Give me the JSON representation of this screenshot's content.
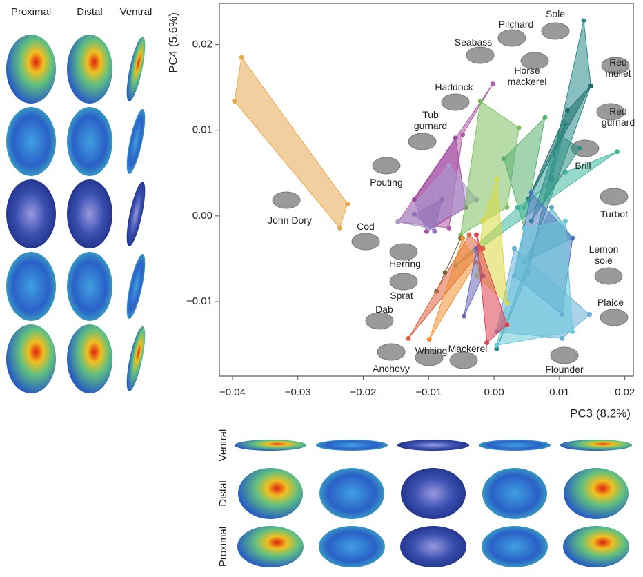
{
  "left_panel": {
    "headers": [
      "Proximal",
      "Distal",
      "Ventral"
    ]
  },
  "bottom_panel": {
    "row_labels": [
      "Ventral",
      "Distal",
      "Proximal"
    ]
  },
  "chart_data": {
    "type": "scatter",
    "xlabel": "PC3 (8.2%)",
    "ylabel": "PC4 (5.6%)",
    "xlim": [
      -0.042,
      0.0213
    ],
    "ylim": [
      -0.0187,
      0.0248
    ],
    "xticks": [
      {
        "value": -0.04,
        "label": "−0.04"
      },
      {
        "value": -0.03,
        "label": "−0.03"
      },
      {
        "value": -0.02,
        "label": "−0.02"
      },
      {
        "value": -0.01,
        "label": "−0.01"
      },
      {
        "value": 0,
        "label": "0.00"
      },
      {
        "value": 0.01,
        "label": "0.01"
      },
      {
        "value": 0.02,
        "label": "0.02"
      }
    ],
    "yticks": [
      {
        "value": -0.01,
        "label": "−0.01"
      },
      {
        "value": 0,
        "label": "0.00"
      },
      {
        "value": 0.01,
        "label": "0.01"
      },
      {
        "value": 0.02,
        "label": "0.02"
      }
    ],
    "series": [
      {
        "name": "John Dory",
        "color": "#e8a850",
        "x": [
          -0.0386,
          -0.0397,
          -0.0236,
          -0.0224
        ],
        "y": [
          0.0185,
          0.0134,
          -0.0014,
          0.0014
        ]
      },
      {
        "name": "Haddock",
        "color": "#b05aa8",
        "x": [
          -0.0002,
          -0.0147,
          -0.0069,
          -0.0048
        ],
        "y": [
          0.0154,
          -0.0007,
          -0.0014,
          0.0095
        ]
      },
      {
        "name": "Tub gurnard",
        "color": "#9a4aa0",
        "x": [
          -0.0122,
          -0.0103,
          -0.0043,
          -0.0059
        ],
        "y": [
          0.0019,
          -0.0018,
          0.001,
          0.0091
        ]
      },
      {
        "name": "Pouting",
        "color": "#a99ad0",
        "x": [
          -0.0147,
          -0.0069,
          -0.0027,
          -0.0101
        ],
        "y": [
          -0.0007,
          0.0059,
          0.0019,
          -0.0014
        ]
      },
      {
        "name": "Cod",
        "color": "#9070b8",
        "x": [
          -0.0122,
          -0.008,
          -0.0091
        ],
        "y": [
          0.0002,
          0.0019,
          -0.0018
        ]
      },
      {
        "name": "Seabass",
        "color": "#7cc060",
        "x": [
          -0.0051,
          -0.0021,
          0.0038,
          0.002
        ],
        "y": [
          -0.0022,
          0.0134,
          0.0103,
          0.001
        ]
      },
      {
        "name": "Pilchard",
        "color": "#3aa0a0",
        "x": [
          0.0046,
          0.0109,
          0.0088
        ],
        "y": [
          0.001,
          0.0107,
          0.0043
        ]
      },
      {
        "name": "Sole",
        "color": "#2a8a8a",
        "x": [
          0.0137,
          0.0148,
          0.0004,
          0.0052
        ],
        "y": [
          0.0228,
          0.0152,
          -0.0155,
          -0.0066
        ]
      },
      {
        "name": "Horse mackerel",
        "color": "#58b070",
        "x": [
          0.0015,
          0.0078,
          0.0046
        ],
        "y": [
          0.0067,
          0.0115,
          -0.0014
        ]
      },
      {
        "name": "Red mullet",
        "color": "#1e6f6a",
        "x": [
          0.0148,
          0.0112,
          0.0052
        ],
        "y": [
          0.0152,
          0.0123,
          0.0019
        ]
      },
      {
        "name": "Red gurnard",
        "color": "#40b8a0",
        "x": [
          0.0188,
          -0.0059,
          0.0036,
          0.0109
        ],
        "y": [
          0.0075,
          -0.0058,
          0.001,
          0.0051
        ]
      },
      {
        "name": "Brill",
        "color": "#2e9080",
        "x": [
          0.0099,
          0.0131,
          0.0057
        ],
        "y": [
          0.0095,
          0.0079,
          -0.0006
        ]
      },
      {
        "name": "Turbot",
        "color": "#58a8c0",
        "x": [
          0.0088,
          0.012,
          0.0046
        ],
        "y": [
          0.001,
          -0.0026,
          -0.0054
        ]
      },
      {
        "name": "Lemon sole",
        "color": "#4a78c0",
        "x": [
          0.0057,
          0.012,
          0.0104,
          0.0031
        ],
        "y": [
          0.0027,
          -0.0026,
          -0.0115,
          -0.007
        ]
      },
      {
        "name": "Plaice",
        "color": "#6aaed8",
        "x": [
          0.0031,
          0.0146,
          0.0104,
          0.0004
        ],
        "y": [
          -0.0038,
          -0.0115,
          -0.0143,
          -0.0135
        ]
      },
      {
        "name": "Flounder",
        "color": "#68c8d8",
        "x": [
          0.0004,
          0.012,
          0.0109,
          0.0046
        ],
        "y": [
          -0.0151,
          -0.0135,
          -0.0006,
          -0.0014
        ]
      },
      {
        "name": "Mackerel",
        "color": "#7a6030",
        "x": [
          -0.0051,
          -0.0088,
          -0.0075
        ],
        "y": [
          -0.0026,
          -0.0088,
          -0.0066
        ]
      },
      {
        "name": "Whiting",
        "color": "#d8d840",
        "x": [
          -0.0017,
          0.0004,
          0.002,
          -0.0027
        ],
        "y": [
          -0.0006,
          0.0043,
          -0.0102,
          -0.007
        ]
      },
      {
        "name": "Anchovy",
        "color": "#e06040",
        "x": [
          -0.0131,
          -0.0038,
          -0.0017
        ],
        "y": [
          -0.0143,
          -0.0022,
          -0.0038
        ]
      },
      {
        "name": "Dab",
        "color": "#f09030",
        "x": [
          -0.0099,
          -0.0048,
          -0.0027
        ],
        "y": [
          -0.0144,
          -0.0026,
          -0.0054
        ]
      },
      {
        "name": "Sprat",
        "color": "#6a68b8",
        "x": [
          -0.0046,
          -0.0027,
          -0.0017
        ],
        "y": [
          -0.0117,
          -0.0038,
          -0.007
        ]
      },
      {
        "name": "Herring",
        "color": "#e04050",
        "x": [
          -0.0011,
          -0.0027,
          0.002
        ],
        "y": [
          -0.0148,
          -0.0022,
          -0.0127
        ]
      }
    ]
  }
}
